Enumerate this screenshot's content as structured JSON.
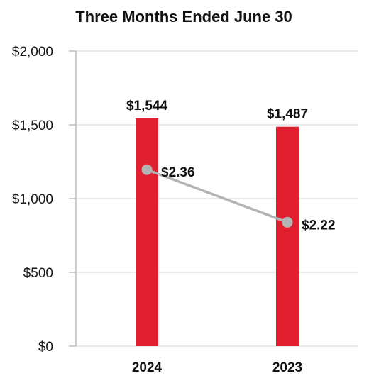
{
  "chart_data": {
    "type": "bar",
    "title": "Three Months Ended June 30",
    "categories": [
      "2024",
      "2023"
    ],
    "bar_values": [
      1544,
      1487
    ],
    "bar_labels": [
      "$1,544",
      "$1,487"
    ],
    "line_values": [
      2.36,
      2.22
    ],
    "line_labels": [
      "$2.36",
      "$2.22"
    ],
    "ylim": [
      0,
      2000
    ],
    "yticks": [
      0,
      500,
      1000,
      1500,
      2000
    ],
    "ytick_labels": [
      "$0",
      "$500",
      "$1,000",
      "$1,500",
      "$2,000"
    ],
    "grid": true,
    "colors": {
      "bar": "#e02030",
      "line": "#b3b3b3",
      "marker": "#b3b3b3",
      "grid": "#e3e3e3",
      "axis": "#bfbfbf"
    }
  }
}
